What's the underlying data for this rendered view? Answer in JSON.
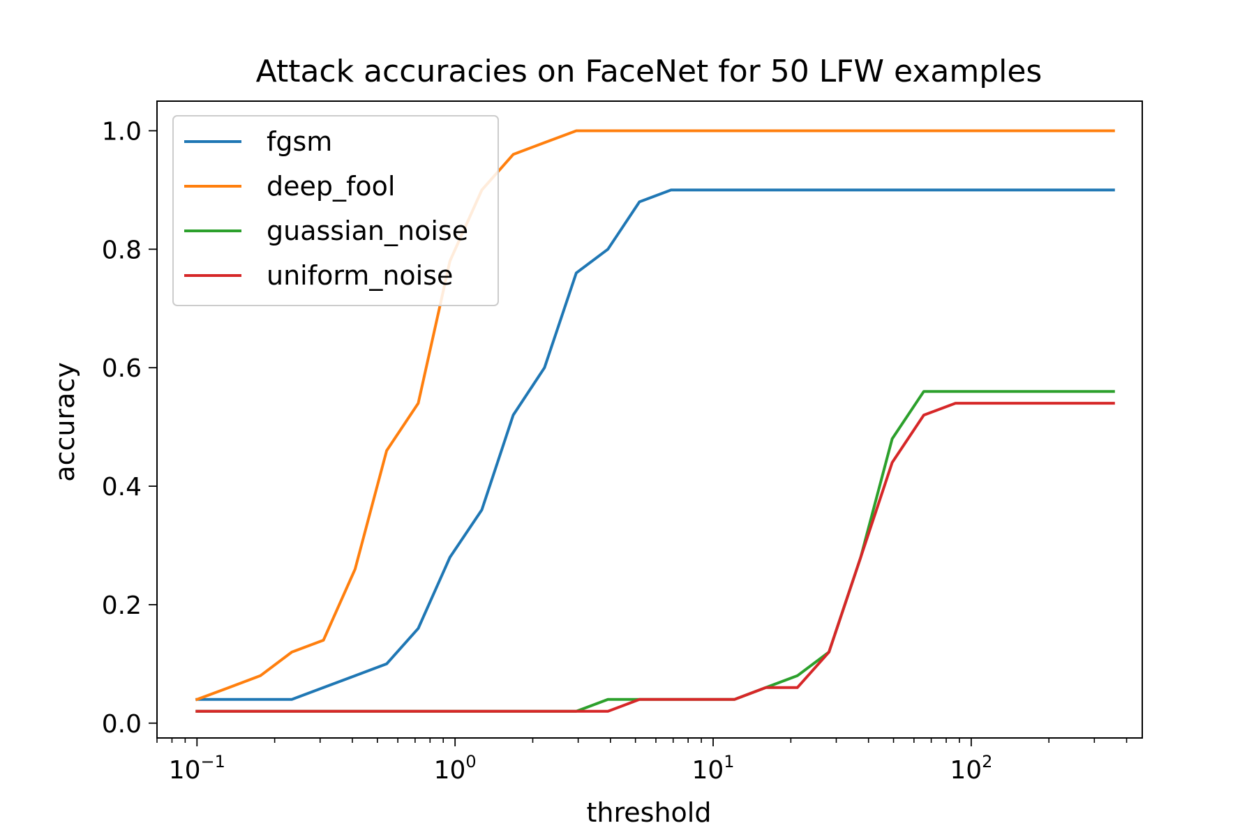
{
  "chart_data": {
    "type": "line",
    "title": "Attack accuracies on FaceNet for 50 LFW examples",
    "xlabel": "threshold",
    "ylabel": "accuracy",
    "xscale": "log",
    "xlim": [
      0.07,
      460
    ],
    "ylim": [
      -0.025,
      1.05
    ],
    "xticks": [
      {
        "value": 0.1,
        "base": "10",
        "exp": "−1"
      },
      {
        "value": 1,
        "base": "10",
        "exp": "0"
      },
      {
        "value": 10,
        "base": "10",
        "exp": "1"
      },
      {
        "value": 100,
        "base": "10",
        "exp": "2"
      }
    ],
    "yticks": [
      {
        "value": 0.0,
        "label": "0.0"
      },
      {
        "value": 0.2,
        "label": "0.2"
      },
      {
        "value": 0.4,
        "label": "0.4"
      },
      {
        "value": 0.6,
        "label": "0.6"
      },
      {
        "value": 0.8,
        "label": "0.8"
      },
      {
        "value": 1.0,
        "label": "1.0"
      }
    ],
    "legend_position": "top-left",
    "grid": false,
    "x": [
      0.1,
      0.133,
      0.176,
      0.233,
      0.309,
      0.41,
      0.543,
      0.72,
      0.955,
      1.27,
      1.68,
      2.22,
      2.95,
      3.91,
      5.18,
      6.87,
      9.1,
      12.1,
      16.0,
      21.2,
      28.1,
      37.3,
      49.4,
      65.5,
      86.9,
      115,
      153,
      202,
      268,
      356
    ],
    "series": [
      {
        "name": "fgsm",
        "color": "#1f77b4",
        "values": [
          0.04,
          0.04,
          0.04,
          0.04,
          0.06,
          0.08,
          0.1,
          0.16,
          0.28,
          0.36,
          0.52,
          0.6,
          0.76,
          0.8,
          0.88,
          0.9,
          0.9,
          0.9,
          0.9,
          0.9,
          0.9,
          0.9,
          0.9,
          0.9,
          0.9,
          0.9,
          0.9,
          0.9,
          0.9,
          0.9
        ]
      },
      {
        "name": "deep_fool",
        "color": "#ff7f0e",
        "values": [
          0.04,
          0.06,
          0.08,
          0.12,
          0.14,
          0.26,
          0.46,
          0.54,
          0.78,
          0.9,
          0.96,
          0.98,
          1.0,
          1.0,
          1.0,
          1.0,
          1.0,
          1.0,
          1.0,
          1.0,
          1.0,
          1.0,
          1.0,
          1.0,
          1.0,
          1.0,
          1.0,
          1.0,
          1.0,
          1.0
        ]
      },
      {
        "name": "guassian_noise",
        "color": "#2ca02c",
        "values": [
          0.02,
          0.02,
          0.02,
          0.02,
          0.02,
          0.02,
          0.02,
          0.02,
          0.02,
          0.02,
          0.02,
          0.02,
          0.02,
          0.04,
          0.04,
          0.04,
          0.04,
          0.04,
          0.06,
          0.08,
          0.12,
          0.28,
          0.48,
          0.56,
          0.56,
          0.56,
          0.56,
          0.56,
          0.56,
          0.56
        ]
      },
      {
        "name": "uniform_noise",
        "color": "#d62728",
        "values": [
          0.02,
          0.02,
          0.02,
          0.02,
          0.02,
          0.02,
          0.02,
          0.02,
          0.02,
          0.02,
          0.02,
          0.02,
          0.02,
          0.02,
          0.04,
          0.04,
          0.04,
          0.04,
          0.06,
          0.06,
          0.12,
          0.28,
          0.44,
          0.52,
          0.54,
          0.54,
          0.54,
          0.54,
          0.54,
          0.54
        ]
      }
    ]
  }
}
